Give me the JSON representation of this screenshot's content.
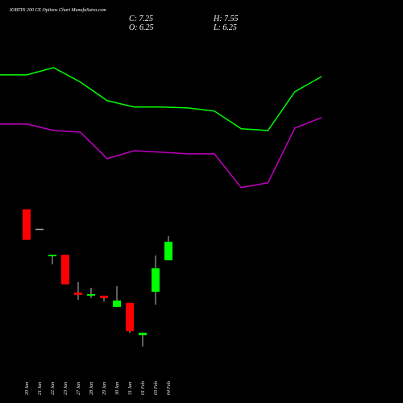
{
  "chart_data": {
    "type": "candlestick",
    "title": "IOBTIN 200 CE Options Chart MunafaSutra.com",
    "ohlc_labels": {
      "close": "C: 7.25",
      "high": "H: 7.55",
      "open": "O: 6.25",
      "low": "L: 6.25"
    },
    "categories": [
      "20 Jan",
      "21 Jan",
      "22 Jan",
      "23 Jan",
      "27 Jan",
      "28 Jan",
      "29 Jan",
      "30 Jan",
      "31 Jan",
      "01 Feb",
      "03 Feb",
      "04 Feb"
    ],
    "open": [
      9.0,
      7.95,
      6.47,
      6.55,
      4.51,
      4.34,
      4.34,
      3.73,
      3.95,
      2.21,
      4.55,
      6.25
    ],
    "high": [
      9.0,
      7.95,
      6.55,
      6.55,
      5.08,
      4.77,
      4.34,
      4.86,
      3.95,
      2.34,
      6.51,
      7.55
    ],
    "low": [
      7.35,
      7.95,
      6.03,
      4.95,
      4.12,
      4.21,
      4.03,
      3.73,
      2.34,
      1.6,
      3.86,
      6.25
    ],
    "close": [
      7.35,
      7.95,
      6.55,
      4.95,
      4.38,
      4.42,
      4.21,
      4.08,
      2.42,
      2.34,
      5.82,
      7.25
    ],
    "up_color": "#00ff00",
    "down_color": "#ff0000",
    "flat_color": "#aaaaaa",
    "bands": [
      {
        "color": "#00ff00",
        "values": [
          16.25,
          16.25,
          16.64,
          15.86,
          14.86,
          14.52,
          14.52,
          14.47,
          14.3,
          13.34,
          13.25,
          15.34,
          16.16
        ]
      },
      {
        "color": "#c000c0",
        "values": [
          13.6,
          13.6,
          13.25,
          13.16,
          11.73,
          12.16,
          12.08,
          11.99,
          11.99,
          10.17,
          10.43,
          13.38,
          13.95
        ]
      }
    ],
    "ylim": [
      -1.45,
      20.29
    ]
  }
}
